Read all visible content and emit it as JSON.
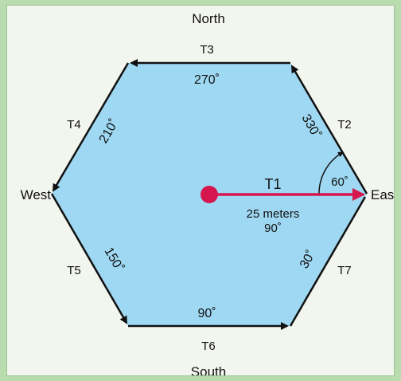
{
  "compass": {
    "north": "North",
    "south": "South",
    "east": "East",
    "west": "West"
  },
  "colors": {
    "hexagon_fill": "#9fd8f2",
    "edge": "#111111",
    "transect": "#d6174f"
  },
  "transects": {
    "t1": {
      "label": "T1",
      "distance": "25 meters",
      "bearing": "90˚"
    },
    "t2": {
      "label": "T2",
      "bearing": "330˚"
    },
    "t3": {
      "label": "T3",
      "bearing": "270˚"
    },
    "t4": {
      "label": "T4",
      "bearing": "210˚"
    },
    "t5": {
      "label": "T5",
      "bearing": "150˚"
    },
    "t6": {
      "label": "T6",
      "bearing": "90˚"
    },
    "t7": {
      "label": "T7",
      "bearing": "30˚"
    }
  },
  "angle_marker": "60˚"
}
